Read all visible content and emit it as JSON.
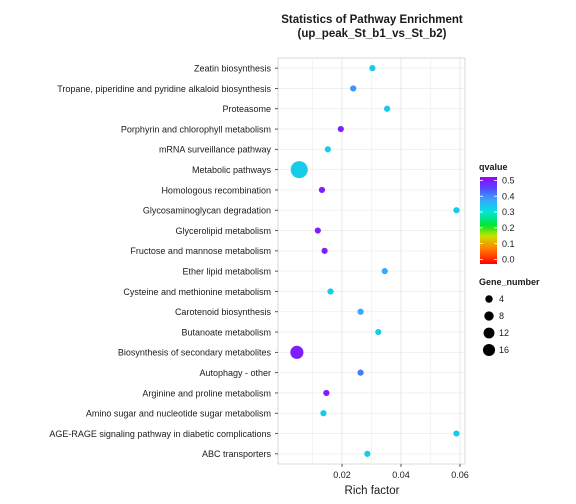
{
  "chart_data": {
    "type": "scatter",
    "title": "Statistics of Pathway Enrichment",
    "subtitle": "(up_peak_St_b1_vs_St_b2)",
    "xlabel": "Rich factor",
    "ylabel": "",
    "xlim": [
      -0.0017,
      0.0617
    ],
    "x_ticks": [
      0.02,
      0.04,
      0.06
    ],
    "x_tick_labels": [
      "0.02",
      "0.04",
      "0.06"
    ],
    "grid": true,
    "legend_position": "right",
    "categories": [
      "Zeatin biosynthesis",
      "Tropane, piperidine and pyridine alkaloid biosynthesis",
      "Proteasome",
      "Porphyrin and chlorophyll metabolism",
      "mRNA surveillance pathway",
      "Metabolic pathways",
      "Homologous recombination",
      "Glycosaminoglycan degradation",
      "Glycerolipid metabolism",
      "Fructose and mannose metabolism",
      "Ether lipid metabolism",
      "Cysteine and methionine metabolism",
      "Carotenoid biosynthesis",
      "Butanoate metabolism",
      "Biosynthesis of secondary metabolites",
      "Autophagy - other",
      "Arginine and proline metabolism",
      "Amino sugar and nucleotide sugar metabolism",
      "AGE-RAGE signaling pathway in diabetic complications",
      "ABC transporters"
    ],
    "rich_factor": [
      0.0303,
      0.0238,
      0.0353,
      0.0196,
      0.0152,
      0.0055,
      0.0132,
      0.0588,
      0.0118,
      0.0141,
      0.0345,
      0.0161,
      0.0263,
      0.0323,
      0.0047,
      0.0263,
      0.0147,
      0.0137,
      0.0588,
      0.0286
    ],
    "qvalue": [
      0.36,
      0.42,
      0.36,
      0.52,
      0.36,
      0.36,
      0.52,
      0.36,
      0.52,
      0.52,
      0.4,
      0.36,
      0.4,
      0.36,
      0.52,
      0.44,
      0.52,
      0.36,
      0.36,
      0.36
    ],
    "gene_number": [
      1,
      1,
      1,
      1,
      1,
      15,
      1,
      1,
      1,
      1,
      1,
      1,
      1,
      1,
      8,
      1,
      1,
      1,
      1,
      1
    ],
    "color_legend": {
      "title": "qvalue",
      "ticks": [
        "0.5",
        "0.4",
        "0.3",
        "0.2",
        "0.1",
        "0.0"
      ],
      "range": [
        0,
        0.55
      ]
    },
    "size_legend": {
      "title": "Gene_number",
      "values": [
        4,
        8,
        12,
        16
      ],
      "labels": [
        "4",
        "8",
        "12",
        "16"
      ]
    }
  }
}
